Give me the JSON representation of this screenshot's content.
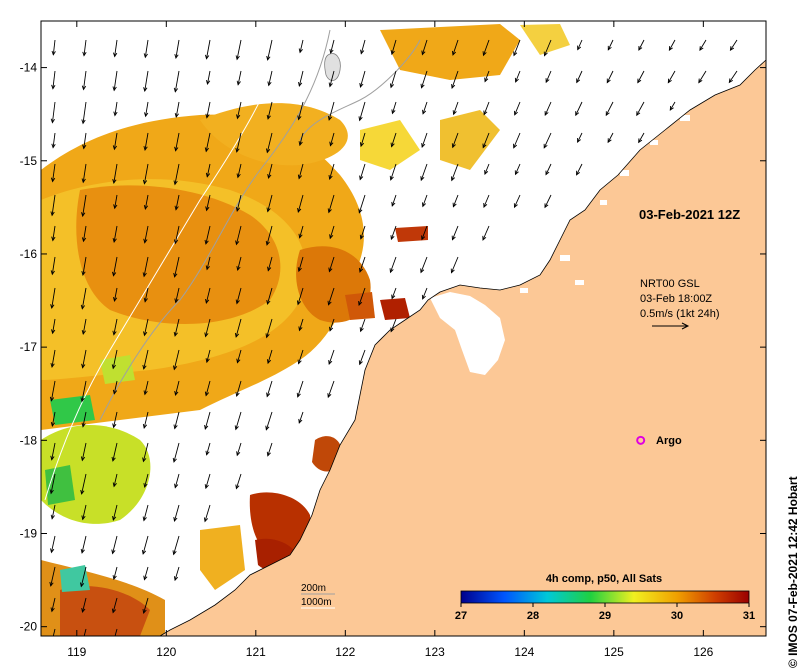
{
  "map": {
    "lon_range": [
      118.6,
      126.7
    ],
    "lat_range": [
      -20.1,
      -13.5
    ],
    "lon_ticks": [
      "119",
      "120",
      "121",
      "122",
      "123",
      "124",
      "125",
      "126"
    ],
    "lat_ticks": [
      "-14",
      "-15",
      "-16",
      "-17",
      "-18",
      "-19",
      "-20"
    ],
    "land_color": "#fcc896",
    "lon_tick_values": [
      119,
      120,
      121,
      122,
      123,
      124,
      125,
      126
    ],
    "lat_tick_values": [
      -14,
      -15,
      -16,
      -17,
      -18,
      -19,
      -20
    ]
  },
  "annotations": {
    "date_label": "03-Feb-2021 12Z",
    "current_model": "NRT00 GSL",
    "current_time": "03-Feb 18:00Z",
    "current_scale": "0.5m/s (1kt 24h)",
    "argo_label": "Argo",
    "isobath_200": "200m",
    "isobath_1000": "1000m",
    "credit": "© IMOS 07-Feb-2021 12:42 Hobart"
  },
  "colorbar": {
    "title": "4h comp, p50, All Sats",
    "ticks": [
      "27",
      "28",
      "29",
      "30",
      "31"
    ],
    "range": [
      27,
      31
    ],
    "colors": [
      "#00008c",
      "#0055ff",
      "#00c8d8",
      "#20d040",
      "#f0f020",
      "#f0a000",
      "#d04000",
      "#9a0000"
    ]
  },
  "argo_float": {
    "lon": 125.3,
    "lat": -18.0,
    "color": "#e000e0"
  }
}
